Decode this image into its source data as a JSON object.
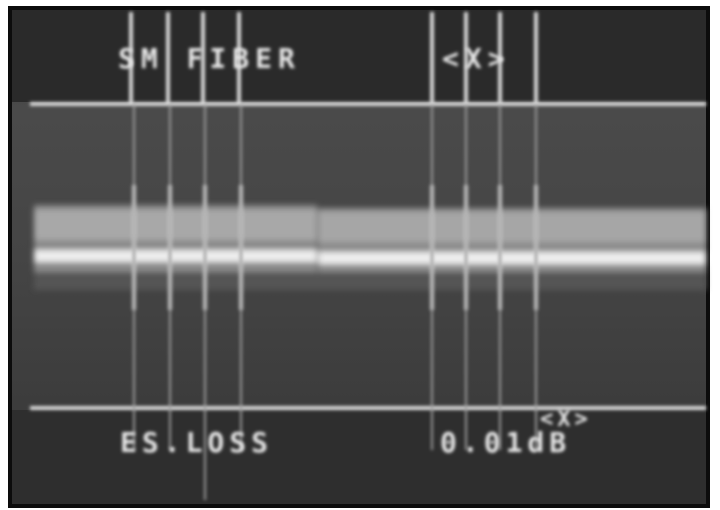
{
  "header": {
    "fiber_type": "SM FIBER",
    "view": "<X>"
  },
  "footer": {
    "view": "<X>",
    "label": "ES.LOSS",
    "value": "0.01dB"
  }
}
